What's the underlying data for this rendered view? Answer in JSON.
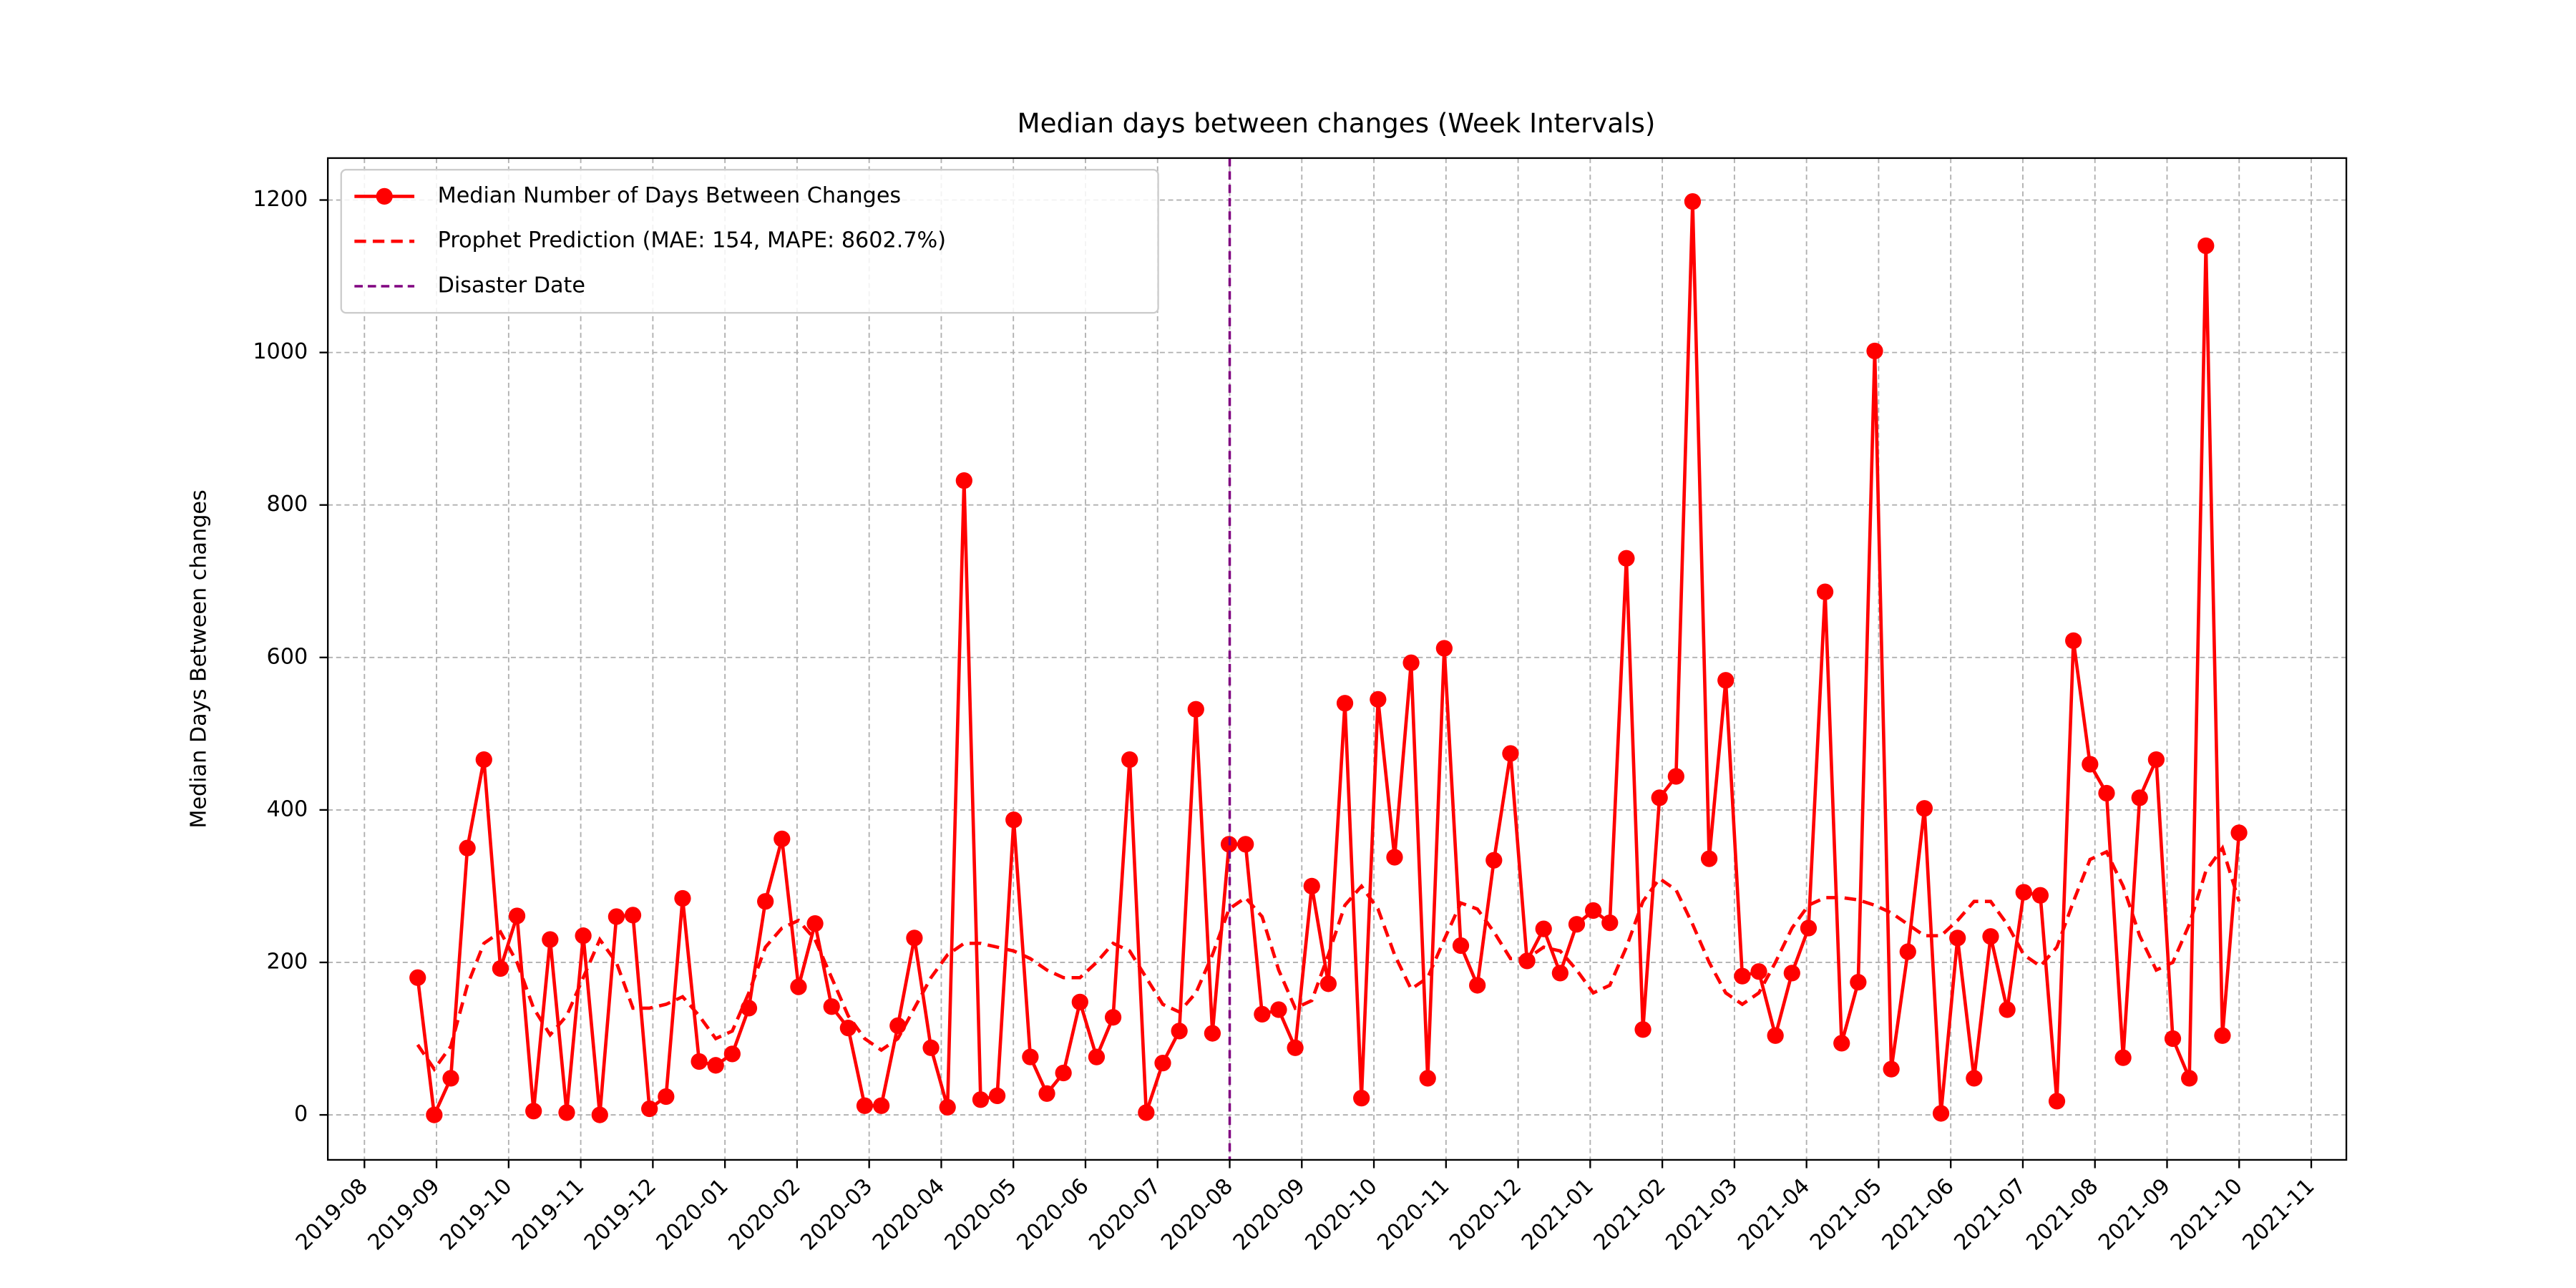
{
  "chart_data": {
    "type": "line",
    "title": "Median days between changes (Week Intervals)",
    "y_label": "Median Days Between changes",
    "xticks": [
      "2019-08",
      "2019-09",
      "2019-10",
      "2019-11",
      "2019-12",
      "2020-01",
      "2020-02",
      "2020-03",
      "2020-04",
      "2020-05",
      "2020-06",
      "2020-07",
      "2020-08",
      "2020-09",
      "2020-10",
      "2020-11",
      "2020-12",
      "2021-01",
      "2021-02",
      "2021-03",
      "2021-04",
      "2021-05",
      "2021-06",
      "2021-07",
      "2021-08",
      "2021-09",
      "2021-10",
      "2021-11"
    ],
    "ylim": [
      -59,
      1255
    ],
    "yticks": [
      0,
      200,
      400,
      600,
      800,
      1000,
      1200
    ],
    "grid": true,
    "legend": "upper left",
    "series": [
      {
        "name": "Median Number of Days Between Changes",
        "color": "red",
        "style": "solid-marker",
        "values": [
          180,
          0,
          48,
          350,
          466,
          192,
          261,
          5,
          230,
          3,
          235,
          0,
          260,
          262,
          8,
          24,
          284,
          70,
          65,
          80,
          140,
          280,
          362,
          168,
          251,
          142,
          114,
          12,
          12,
          117,
          232,
          88,
          10,
          832,
          20,
          25,
          387,
          76,
          28,
          55,
          148,
          76,
          128,
          466,
          3,
          68,
          110,
          532,
          107,
          355,
          355,
          132,
          138,
          88,
          300,
          172,
          540,
          22,
          545,
          338,
          593,
          48,
          612,
          222,
          170,
          334,
          474,
          202,
          244,
          186,
          250,
          268,
          252,
          730,
          112,
          416,
          444,
          1198,
          336,
          570,
          182,
          188,
          104,
          186,
          245,
          686,
          94,
          174,
          1002,
          60,
          214,
          402,
          2,
          232,
          48,
          234,
          138,
          292,
          288,
          18,
          622,
          460,
          422,
          75,
          416,
          466,
          100,
          48,
          1140,
          104,
          370
        ]
      },
      {
        "name": "Prophet Prediction (MAE: 154, MAPE: 8602.7%)",
        "color": "red",
        "style": "dashed",
        "values": [
          92,
          60,
          90,
          170,
          225,
          240,
          200,
          140,
          105,
          130,
          180,
          230,
          200,
          140,
          140,
          145,
          155,
          130,
          100,
          110,
          160,
          220,
          245,
          255,
          230,
          180,
          130,
          100,
          85,
          100,
          140,
          180,
          210,
          225,
          225,
          220,
          215,
          205,
          190,
          180,
          180,
          200,
          225,
          215,
          180,
          145,
          135,
          160,
          210,
          270,
          285,
          260,
          190,
          140,
          150,
          210,
          275,
          300,
          270,
          210,
          165,
          180,
          230,
          278,
          270,
          240,
          205,
          205,
          220,
          215,
          190,
          160,
          170,
          220,
          280,
          310,
          295,
          250,
          200,
          160,
          145,
          160,
          200,
          245,
          275,
          285,
          285,
          282,
          275,
          265,
          250,
          235,
          235,
          255,
          280,
          280,
          250,
          210,
          195,
          220,
          280,
          335,
          345,
          300,
          235,
          190,
          200,
          250,
          320,
          350,
          280
        ]
      },
      {
        "name": "Disaster Date",
        "color": "purple",
        "style": "vline",
        "x": "2020-08"
      }
    ]
  }
}
